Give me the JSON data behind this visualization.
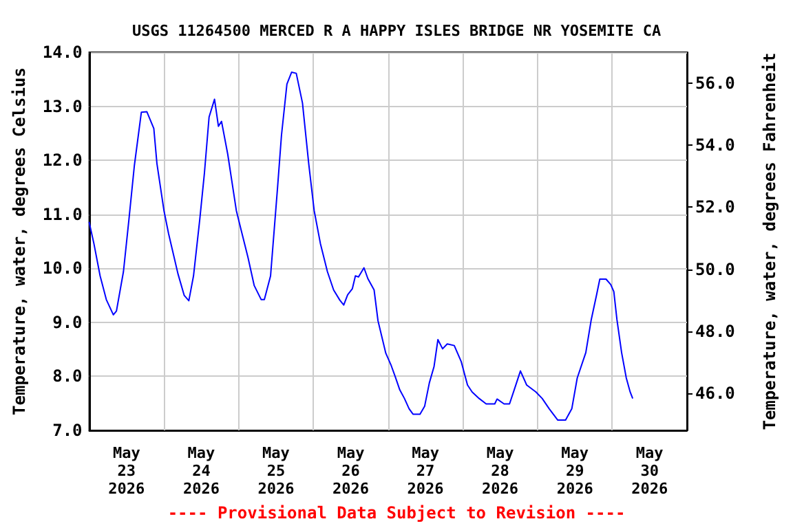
{
  "chart_data": {
    "type": "line",
    "title": "USGS 11264500 MERCED R A HAPPY ISLES BRIDGE NR YOSEMITE CA",
    "ylabel": "Temperature, water, degrees Celsius",
    "y2label": "Temperature, water, degrees Fahrenheit",
    "annotations": [
      "---- Provisional Data Subject to Revision ----"
    ],
    "x": [
      "2026-05-23T00:00",
      "2026-05-23T01:30",
      "2026-05-23T03:30",
      "2026-05-23T05:30",
      "2026-05-23T07:45",
      "2026-05-23T08:45",
      "2026-05-23T11:00",
      "2026-05-23T12:45",
      "2026-05-23T14:30",
      "2026-05-23T16:45",
      "2026-05-23T18:30",
      "2026-05-23T20:45",
      "2026-05-23T21:45",
      "2026-05-24T00:00",
      "2026-05-24T01:30",
      "2026-05-24T04:30",
      "2026-05-24T06:30",
      "2026-05-24T08:00",
      "2026-05-24T09:30",
      "2026-05-24T11:30",
      "2026-05-24T13:00",
      "2026-05-24T14:30",
      "2026-05-24T16:15",
      "2026-05-24T17:30",
      "2026-05-24T18:30",
      "2026-05-24T20:30",
      "2026-05-24T23:15",
      "2026-05-25T00:45",
      "2026-05-25T03:00",
      "2026-05-25T05:00",
      "2026-05-25T07:15",
      "2026-05-25T08:15",
      "2026-05-25T10:15",
      "2026-05-25T12:30",
      "2026-05-25T13:45",
      "2026-05-25T15:30",
      "2026-05-25T17:00",
      "2026-05-25T18:30",
      "2026-05-25T20:30",
      "2026-05-25T22:30",
      "2026-05-26T00:15",
      "2026-05-26T02:15",
      "2026-05-26T04:30",
      "2026-05-26T06:30",
      "2026-05-26T08:30",
      "2026-05-26T09:45",
      "2026-05-26T11:00",
      "2026-05-26T12:30",
      "2026-05-26T13:30",
      "2026-05-26T14:30",
      "2026-05-26T16:15",
      "2026-05-26T17:30",
      "2026-05-26T19:30",
      "2026-05-26T20:45",
      "2026-05-26T23:15",
      "2026-05-27T01:00",
      "2026-05-27T02:15",
      "2026-05-27T03:45",
      "2026-05-27T05:15",
      "2026-05-27T06:45",
      "2026-05-27T08:00",
      "2026-05-27T10:15",
      "2026-05-27T11:45",
      "2026-05-27T13:15",
      "2026-05-27T14:45",
      "2026-05-27T16:00",
      "2026-05-27T17:30",
      "2026-05-27T19:00",
      "2026-05-27T21:15",
      "2026-05-27T23:30",
      "2026-05-28T01:30",
      "2026-05-28T03:00",
      "2026-05-28T05:15",
      "2026-05-28T07:30",
      "2026-05-28T10:15",
      "2026-05-28T11:00",
      "2026-05-28T13:15",
      "2026-05-28T15:00",
      "2026-05-28T16:30",
      "2026-05-28T18:30",
      "2026-05-28T20:30",
      "2026-05-28T23:30",
      "2026-05-29T01:30",
      "2026-05-29T03:45",
      "2026-05-29T06:30",
      "2026-05-29T09:00",
      "2026-05-29T11:00",
      "2026-05-29T12:45",
      "2026-05-29T15:30",
      "2026-05-29T17:15",
      "2026-05-29T19:00",
      "2026-05-29T20:00",
      "2026-05-29T22:00",
      "2026-05-29T23:30",
      "2026-05-30T00:30",
      "2026-05-30T01:30",
      "2026-05-30T03:00",
      "2026-05-30T04:30",
      "2026-05-30T05:45",
      "2026-05-30T06:30"
    ],
    "series": [
      {
        "color": "#0000ff",
        "values": [
          10.85,
          10.46,
          9.86,
          9.42,
          9.14,
          9.21,
          9.94,
          10.9,
          11.9,
          12.89,
          12.9,
          12.59,
          11.94,
          11.07,
          10.64,
          9.9,
          9.5,
          9.4,
          9.86,
          10.9,
          11.76,
          12.8,
          13.13,
          12.63,
          12.72,
          12.11,
          11.07,
          10.72,
          10.2,
          9.68,
          9.42,
          9.42,
          9.86,
          11.5,
          12.46,
          13.41,
          13.63,
          13.61,
          13.06,
          11.94,
          11.07,
          10.46,
          9.94,
          9.6,
          9.41,
          9.32,
          9.51,
          9.62,
          9.86,
          9.84,
          10.01,
          9.81,
          9.6,
          9.03,
          8.43,
          8.2,
          8.0,
          7.75,
          7.59,
          7.4,
          7.3,
          7.3,
          7.45,
          7.88,
          8.18,
          8.68,
          8.51,
          8.6,
          8.57,
          8.27,
          7.84,
          7.71,
          7.59,
          7.49,
          7.49,
          7.58,
          7.49,
          7.49,
          7.75,
          8.1,
          7.84,
          7.71,
          7.59,
          7.4,
          7.19,
          7.19,
          7.4,
          7.97,
          8.44,
          9.05,
          9.52,
          9.8,
          9.8,
          9.7,
          9.57,
          9.05,
          8.44,
          7.97,
          7.71,
          7.6
        ]
      }
    ],
    "xlim": [
      "2026-05-23T00:00",
      "2026-05-31T00:00"
    ],
    "xticks": [
      {
        "value": "2026-05-23T12:00",
        "label": "May\n23\n2026"
      },
      {
        "value": "2026-05-24T00:00",
        "label": null
      },
      {
        "value": "2026-05-24T12:00",
        "label": "May\n24\n2026"
      },
      {
        "value": "2026-05-25T00:00",
        "label": null
      },
      {
        "value": "2026-05-25T12:00",
        "label": "May\n25\n2026"
      },
      {
        "value": "2026-05-26T00:00",
        "label": null
      },
      {
        "value": "2026-05-26T12:00",
        "label": "May\n26\n2026"
      },
      {
        "value": "2026-05-27T00:00",
        "label": null
      },
      {
        "value": "2026-05-27T12:00",
        "label": "May\n27\n2026"
      },
      {
        "value": "2026-05-28T00:00",
        "label": null
      },
      {
        "value": "2026-05-28T12:00",
        "label": "May\n28\n2026"
      },
      {
        "value": "2026-05-29T00:00",
        "label": null
      },
      {
        "value": "2026-05-29T12:00",
        "label": "May\n29\n2026"
      },
      {
        "value": "2026-05-30T00:00",
        "label": null
      },
      {
        "value": "2026-05-30T12:00",
        "label": "May\n30\n2026"
      }
    ],
    "ylim": [
      7,
      14
    ],
    "yticks": [
      {
        "value": 7,
        "label": "7.0"
      },
      {
        "value": 8,
        "label": "8.0"
      },
      {
        "value": 9,
        "label": "9.0"
      },
      {
        "value": 10,
        "label": "10.0"
      },
      {
        "value": 11,
        "label": "11.0"
      },
      {
        "value": 12,
        "label": "12.0"
      },
      {
        "value": 13,
        "label": "13.0"
      },
      {
        "value": 14,
        "label": "14.0"
      }
    ],
    "y2lim": [
      44.8,
      57.0
    ],
    "y2ticks": [
      {
        "value": 46,
        "label": "46.0"
      },
      {
        "value": 48,
        "label": "48.0"
      },
      {
        "value": 50,
        "label": "50.0"
      },
      {
        "value": 52,
        "label": "52.0"
      },
      {
        "value": 54,
        "label": "54.0"
      },
      {
        "value": 56,
        "label": "56.0"
      }
    ],
    "grid": true,
    "marker": "none"
  }
}
